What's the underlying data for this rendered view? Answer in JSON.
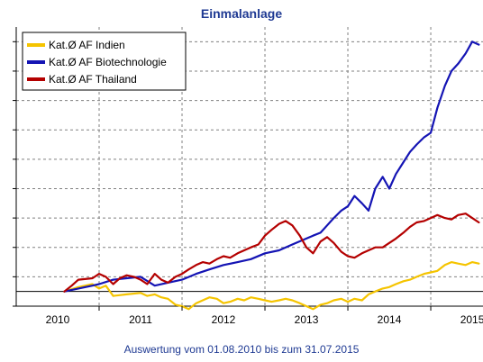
{
  "chart_data": {
    "type": "line",
    "title": "Einmalanlage",
    "subtitle": "",
    "footer": "Auswertung vom 01.08.2010 bis zum 31.07.2015",
    "xlabel": "",
    "ylabel": "",
    "x_tick_labels": [
      "2010",
      "2011",
      "2012",
      "2013",
      "2014",
      "2015"
    ],
    "x_tick_positions": [
      2010.5,
      2011.5,
      2012.5,
      2013.5,
      2014.5,
      2015.5
    ],
    "xlim": [
      2010.0,
      2015.63
    ],
    "ylim": [
      -10,
      180
    ],
    "y_gridlines": [
      -10,
      10,
      30,
      50,
      70,
      90,
      110,
      130,
      150,
      170
    ],
    "y_baseline": 0,
    "grid": true,
    "legend_placement": "top-left",
    "series": [
      {
        "name": "Kat.Ø AF Indien",
        "color": "#f5c400",
        "x": [
          2010.58,
          2010.75,
          2010.92,
          2011.0,
          2011.08,
          2011.17,
          2011.33,
          2011.5,
          2011.58,
          2011.67,
          2011.75,
          2011.83,
          2011.92,
          2012.0,
          2012.08,
          2012.17,
          2012.25,
          2012.33,
          2012.42,
          2012.5,
          2012.58,
          2012.67,
          2012.75,
          2012.83,
          2012.92,
          2013.0,
          2013.08,
          2013.17,
          2013.25,
          2013.33,
          2013.42,
          2013.5,
          2013.58,
          2013.67,
          2013.75,
          2013.83,
          2013.92,
          2014.0,
          2014.08,
          2014.17,
          2014.25,
          2014.33,
          2014.42,
          2014.5,
          2014.58,
          2014.67,
          2014.75,
          2014.83,
          2014.92,
          2015.0,
          2015.08,
          2015.17,
          2015.25,
          2015.33,
          2015.42,
          2015.5,
          2015.58
        ],
        "values": [
          0,
          3,
          5,
          2,
          4,
          -3,
          -2,
          -1,
          -3,
          -2,
          -4,
          -5,
          -9,
          -10,
          -12,
          -8,
          -6,
          -4,
          -5,
          -8,
          -7,
          -5,
          -6,
          -4,
          -5,
          -6,
          -7,
          -6,
          -5,
          -6,
          -8,
          -10,
          -12,
          -9,
          -8,
          -6,
          -5,
          -7,
          -5,
          -6,
          -2,
          0,
          2,
          3,
          5,
          7,
          8,
          10,
          12,
          13,
          14,
          18,
          20,
          19,
          18,
          20,
          19
        ]
      },
      {
        "name": "Kat.Ø AF Biotechnologie",
        "color": "#1414b4",
        "x": [
          2010.58,
          2010.75,
          2010.92,
          2011.0,
          2011.17,
          2011.33,
          2011.5,
          2011.67,
          2011.83,
          2012.0,
          2012.17,
          2012.33,
          2012.5,
          2012.67,
          2012.83,
          2013.0,
          2013.17,
          2013.33,
          2013.5,
          2013.58,
          2013.67,
          2013.75,
          2013.83,
          2013.92,
          2014.0,
          2014.08,
          2014.17,
          2014.25,
          2014.33,
          2014.42,
          2014.5,
          2014.58,
          2014.67,
          2014.75,
          2014.83,
          2014.92,
          2015.0,
          2015.08,
          2015.17,
          2015.25,
          2015.33,
          2015.42,
          2015.5,
          2015.58
        ],
        "values": [
          0,
          2,
          4,
          5,
          8,
          9,
          10,
          4,
          6,
          8,
          12,
          15,
          18,
          20,
          22,
          26,
          28,
          32,
          36,
          38,
          40,
          45,
          50,
          55,
          58,
          65,
          60,
          55,
          70,
          78,
          70,
          80,
          88,
          95,
          100,
          105,
          108,
          125,
          140,
          150,
          155,
          162,
          170,
          168
        ]
      },
      {
        "name": "Kat.Ø AF Thailand",
        "color": "#b40000",
        "x": [
          2010.58,
          2010.67,
          2010.75,
          2010.92,
          2011.0,
          2011.08,
          2011.17,
          2011.25,
          2011.33,
          2011.42,
          2011.5,
          2011.58,
          2011.67,
          2011.75,
          2011.83,
          2011.92,
          2012.0,
          2012.08,
          2012.17,
          2012.25,
          2012.33,
          2012.42,
          2012.5,
          2012.58,
          2012.67,
          2012.75,
          2012.83,
          2012.92,
          2013.0,
          2013.08,
          2013.17,
          2013.25,
          2013.33,
          2013.42,
          2013.5,
          2013.58,
          2013.67,
          2013.75,
          2013.83,
          2013.92,
          2014.0,
          2014.08,
          2014.17,
          2014.25,
          2014.33,
          2014.42,
          2014.5,
          2014.58,
          2014.67,
          2014.75,
          2014.83,
          2014.92,
          2015.0,
          2015.08,
          2015.17,
          2015.25,
          2015.33,
          2015.42,
          2015.5,
          2015.58
        ],
        "values": [
          0,
          4,
          8,
          9,
          12,
          10,
          5,
          9,
          11,
          10,
          8,
          5,
          12,
          8,
          6,
          10,
          12,
          15,
          18,
          20,
          19,
          22,
          24,
          23,
          26,
          28,
          30,
          32,
          38,
          42,
          46,
          48,
          45,
          38,
          30,
          26,
          34,
          37,
          33,
          27,
          24,
          23,
          26,
          28,
          30,
          30,
          33,
          36,
          40,
          44,
          47,
          48,
          50,
          52,
          50,
          49,
          52,
          53,
          50,
          47
        ]
      }
    ]
  }
}
